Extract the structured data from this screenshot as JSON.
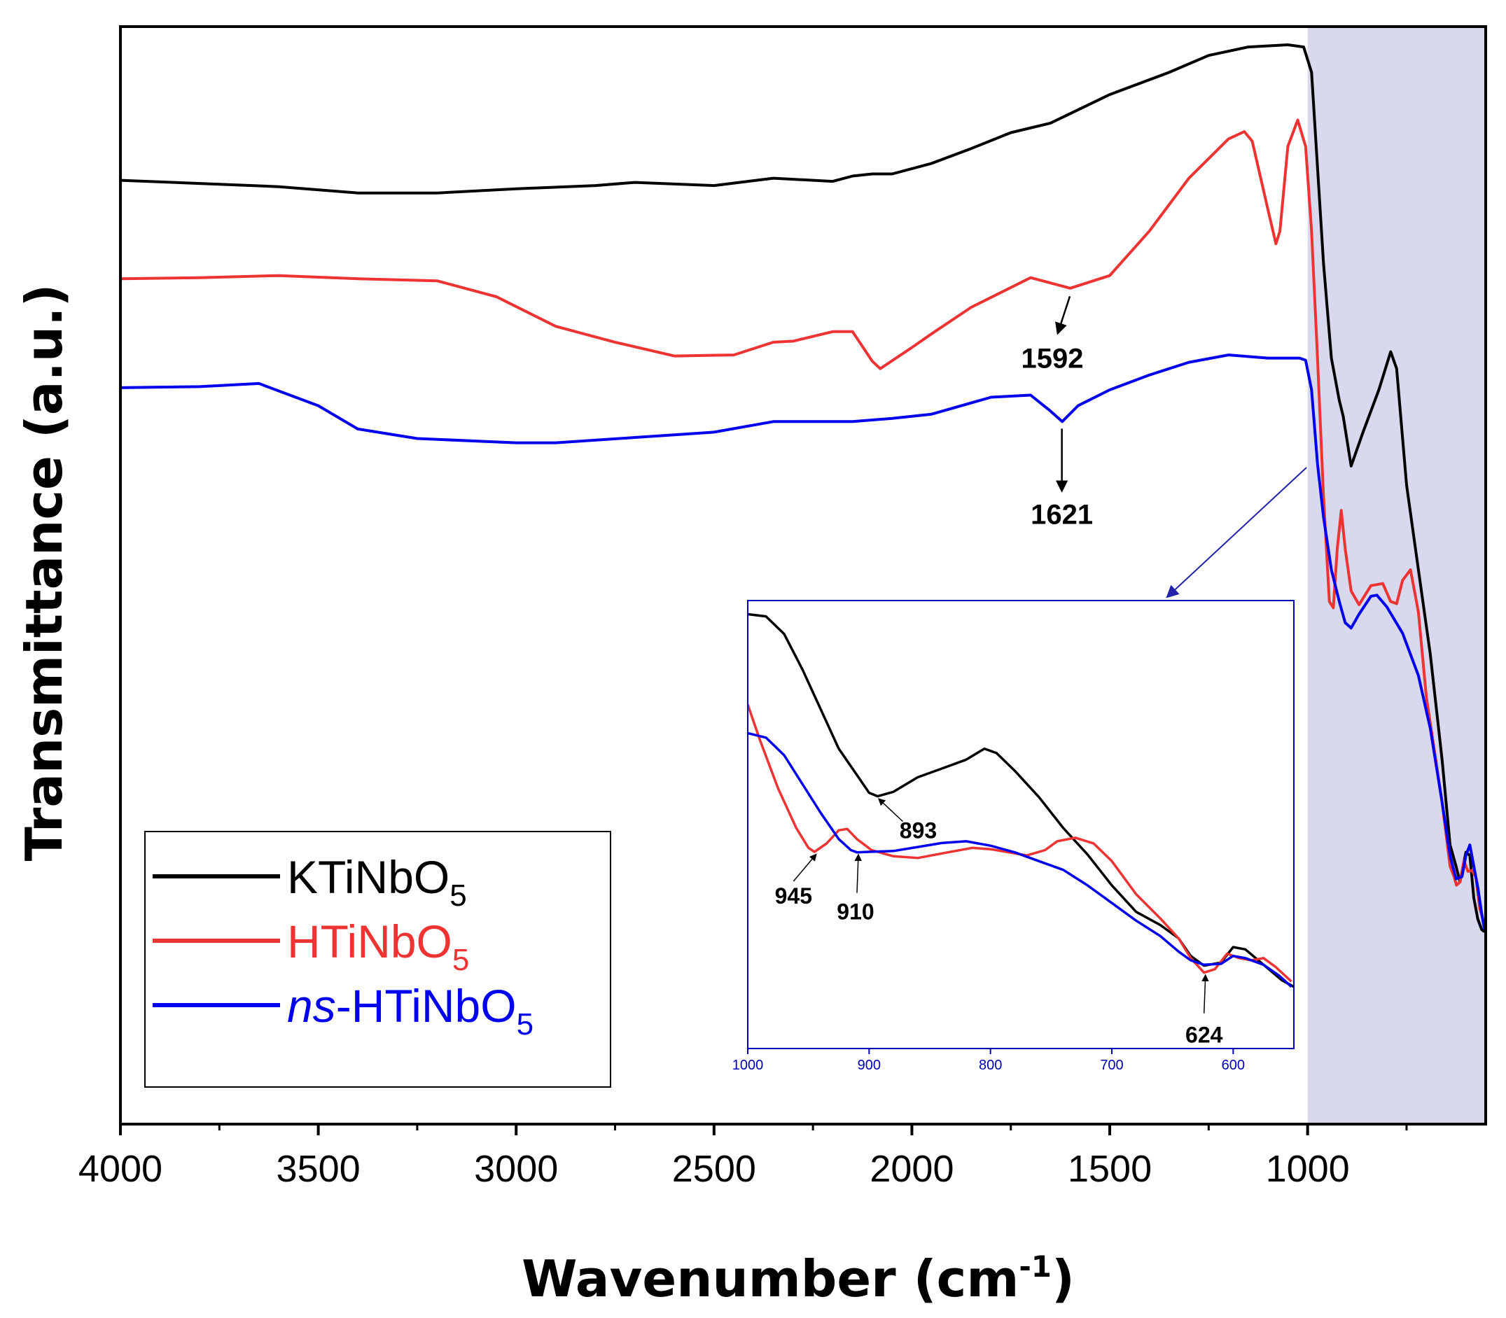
{
  "chart_data": {
    "type": "line",
    "xlabel": "Wavenumber (cm",
    "xlabel_sup": "-1",
    "xlabel_close": ")",
    "ylabel": "Transmittance (a.u.)",
    "xlim": [
      4000,
      550
    ],
    "ylim": [
      0,
      100
    ],
    "x_ticks": [
      "4000",
      "3500",
      "3000",
      "2500",
      "2000",
      "1500",
      "1000"
    ],
    "x_tick_values": [
      4000,
      3500,
      3000,
      2500,
      2000,
      1500,
      1000
    ],
    "highlight_range": [
      1000,
      550
    ],
    "highlight_color": "#d4d4ec",
    "series": [
      {
        "name": "KTiNbO",
        "sub": "5",
        "prefix": "",
        "color": "#000000",
        "points": [
          [
            4000,
            86.8
          ],
          [
            3800,
            86.5
          ],
          [
            3600,
            86.2
          ],
          [
            3400,
            85.6
          ],
          [
            3200,
            85.6
          ],
          [
            3000,
            86.0
          ],
          [
            2800,
            86.3
          ],
          [
            2700,
            86.6
          ],
          [
            2500,
            86.3
          ],
          [
            2350,
            87.0
          ],
          [
            2200,
            86.7
          ],
          [
            2150,
            87.2
          ],
          [
            2100,
            87.4
          ],
          [
            2050,
            87.4
          ],
          [
            1950,
            88.4
          ],
          [
            1850,
            89.8
          ],
          [
            1750,
            91.3
          ],
          [
            1650,
            92.2
          ],
          [
            1500,
            94.9
          ],
          [
            1350,
            97.0
          ],
          [
            1250,
            98.6
          ],
          [
            1150,
            99.4
          ],
          [
            1050,
            99.6
          ],
          [
            1010,
            99.4
          ],
          [
            990,
            97.0
          ],
          [
            975,
            88.0
          ],
          [
            960,
            79.0
          ],
          [
            940,
            70.0
          ],
          [
            920,
            66.0
          ],
          [
            910,
            64.5
          ],
          [
            890,
            59.8
          ],
          [
            860,
            63.0
          ],
          [
            820,
            67.0
          ],
          [
            790,
            70.6
          ],
          [
            775,
            69.0
          ],
          [
            750,
            58.0
          ],
          [
            720,
            50.0
          ],
          [
            690,
            42.0
          ],
          [
            660,
            32.0
          ],
          [
            640,
            24.0
          ],
          [
            625,
            22.0
          ],
          [
            615,
            20.5
          ],
          [
            600,
            23.3
          ],
          [
            590,
            23.0
          ],
          [
            580,
            19.0
          ],
          [
            570,
            17.0
          ],
          [
            560,
            16.0
          ],
          [
            553,
            15.8
          ]
        ]
      },
      {
        "name": "HTiNbO",
        "sub": "5",
        "prefix": "",
        "color": "#ee3333",
        "points": [
          [
            4000,
            77.5
          ],
          [
            3800,
            77.6
          ],
          [
            3600,
            77.8
          ],
          [
            3400,
            77.5
          ],
          [
            3200,
            77.3
          ],
          [
            3050,
            75.8
          ],
          [
            2900,
            73.0
          ],
          [
            2750,
            71.5
          ],
          [
            2600,
            70.2
          ],
          [
            2450,
            70.3
          ],
          [
            2350,
            71.5
          ],
          [
            2300,
            71.6
          ],
          [
            2200,
            72.5
          ],
          [
            2150,
            72.5
          ],
          [
            2100,
            69.7
          ],
          [
            2080,
            69.0
          ],
          [
            2000,
            71.0
          ],
          [
            1950,
            72.3
          ],
          [
            1850,
            74.8
          ],
          [
            1700,
            77.6
          ],
          [
            1600,
            76.6
          ],
          [
            1500,
            77.8
          ],
          [
            1400,
            82.0
          ],
          [
            1300,
            87.0
          ],
          [
            1200,
            90.7
          ],
          [
            1160,
            91.4
          ],
          [
            1140,
            90.5
          ],
          [
            1100,
            84.0
          ],
          [
            1080,
            80.8
          ],
          [
            1070,
            82.0
          ],
          [
            1050,
            90.0
          ],
          [
            1025,
            92.5
          ],
          [
            1005,
            90.0
          ],
          [
            990,
            82.0
          ],
          [
            975,
            70.0
          ],
          [
            960,
            57.0
          ],
          [
            945,
            47.0
          ],
          [
            935,
            46.4
          ],
          [
            925,
            52.0
          ],
          [
            915,
            55.6
          ],
          [
            905,
            52.0
          ],
          [
            890,
            48.0
          ],
          [
            870,
            46.7
          ],
          [
            840,
            48.5
          ],
          [
            810,
            48.7
          ],
          [
            790,
            47.0
          ],
          [
            775,
            46.8
          ],
          [
            760,
            49.0
          ],
          [
            740,
            50.0
          ],
          [
            720,
            46.0
          ],
          [
            700,
            38.0
          ],
          [
            680,
            33.0
          ],
          [
            660,
            28.0
          ],
          [
            640,
            22.0
          ],
          [
            630,
            21.0
          ],
          [
            624,
            20.2
          ],
          [
            615,
            20.5
          ],
          [
            605,
            22.5
          ],
          [
            595,
            21.5
          ],
          [
            585,
            21.6
          ],
          [
            575,
            21.0
          ],
          [
            565,
            18.0
          ],
          [
            553,
            16.5
          ]
        ]
      },
      {
        "name": "HTiNbO",
        "sub": "5",
        "prefix": "ns",
        "color": "#0000ee",
        "points": [
          [
            4000,
            67.2
          ],
          [
            3800,
            67.3
          ],
          [
            3650,
            67.6
          ],
          [
            3500,
            65.5
          ],
          [
            3400,
            63.3
          ],
          [
            3250,
            62.4
          ],
          [
            3000,
            62.0
          ],
          [
            2900,
            62.0
          ],
          [
            2700,
            62.5
          ],
          [
            2500,
            63.0
          ],
          [
            2350,
            64.0
          ],
          [
            2250,
            64.0
          ],
          [
            2150,
            64.0
          ],
          [
            2050,
            64.3
          ],
          [
            1950,
            64.7
          ],
          [
            1800,
            66.3
          ],
          [
            1700,
            66.5
          ],
          [
            1650,
            65.0
          ],
          [
            1620,
            64.0
          ],
          [
            1580,
            65.5
          ],
          [
            1500,
            67.0
          ],
          [
            1400,
            68.4
          ],
          [
            1300,
            69.6
          ],
          [
            1200,
            70.3
          ],
          [
            1100,
            70.0
          ],
          [
            1020,
            70.0
          ],
          [
            1005,
            69.8
          ],
          [
            990,
            67.0
          ],
          [
            975,
            60.0
          ],
          [
            960,
            55.0
          ],
          [
            940,
            50.0
          ],
          [
            920,
            47.0
          ],
          [
            905,
            45.0
          ],
          [
            890,
            44.5
          ],
          [
            870,
            45.8
          ],
          [
            840,
            47.5
          ],
          [
            825,
            47.6
          ],
          [
            800,
            46.5
          ],
          [
            760,
            44.0
          ],
          [
            720,
            40.0
          ],
          [
            690,
            35.0
          ],
          [
            660,
            28.0
          ],
          [
            640,
            23.0
          ],
          [
            625,
            20.8
          ],
          [
            610,
            21.0
          ],
          [
            600,
            23.0
          ],
          [
            590,
            24.0
          ],
          [
            580,
            22.0
          ],
          [
            570,
            20.0
          ],
          [
            560,
            17.5
          ],
          [
            553,
            16.0
          ]
        ]
      }
    ],
    "annotations": [
      {
        "label": "1592",
        "x": 1592,
        "y": 76.5
      },
      {
        "label": "1621",
        "x": 1621,
        "y": 64.0
      }
    ],
    "legend": {
      "position": "bottom-left"
    },
    "inset": {
      "xlim": [
        1000,
        550
      ],
      "x_ticks": [
        "1000",
        "900",
        "800",
        "700",
        "600"
      ],
      "x_tick_values": [
        1000,
        900,
        800,
        700,
        600
      ],
      "ylim": [
        0,
        100
      ],
      "axis_color": "#0000b4",
      "annotations": [
        {
          "label": "893",
          "x": 893
        },
        {
          "label": "945",
          "x": 945
        },
        {
          "label": "910",
          "x": 910
        },
        {
          "label": "624",
          "x": 624
        }
      ],
      "series": [
        {
          "name": "KTiNbO",
          "color": "#000000",
          "points": [
            [
              1000,
              98.5
            ],
            [
              985,
              98.0
            ],
            [
              970,
              94.0
            ],
            [
              955,
              86.0
            ],
            [
              940,
              77.0
            ],
            [
              925,
              68.0
            ],
            [
              910,
              62.0
            ],
            [
              900,
              58.0
            ],
            [
              893,
              57.2
            ],
            [
              880,
              58.2
            ],
            [
              860,
              61.5
            ],
            [
              840,
              63.5
            ],
            [
              820,
              65.5
            ],
            [
              805,
              68.0
            ],
            [
              795,
              67.0
            ],
            [
              780,
              63.0
            ],
            [
              760,
              57.0
            ],
            [
              740,
              50.0
            ],
            [
              720,
              44.0
            ],
            [
              700,
              37.0
            ],
            [
              680,
              31.0
            ],
            [
              660,
              28.0
            ],
            [
              645,
              25.0
            ],
            [
              635,
              21.0
            ],
            [
              624,
              18.8
            ],
            [
              610,
              19.5
            ],
            [
              600,
              23.0
            ],
            [
              590,
              22.5
            ],
            [
              575,
              19.0
            ],
            [
              560,
              15.5
            ],
            [
              550,
              14.0
            ]
          ]
        },
        {
          "name": "HTiNbO",
          "color": "#ee3333",
          "points": [
            [
              1000,
              78.0
            ],
            [
              990,
              70.0
            ],
            [
              975,
              59.0
            ],
            [
              960,
              50.0
            ],
            [
              950,
              45.5
            ],
            [
              945,
              44.6
            ],
            [
              935,
              46.5
            ],
            [
              925,
              49.5
            ],
            [
              918,
              49.8
            ],
            [
              910,
              47.5
            ],
            [
              898,
              45.0
            ],
            [
              880,
              43.6
            ],
            [
              860,
              43.2
            ],
            [
              835,
              44.5
            ],
            [
              815,
              45.5
            ],
            [
              800,
              45.2
            ],
            [
              785,
              44.5
            ],
            [
              770,
              43.8
            ],
            [
              755,
              45.0
            ],
            [
              745,
              47.0
            ],
            [
              730,
              47.8
            ],
            [
              715,
              46.5
            ],
            [
              700,
              42.5
            ],
            [
              680,
              35.0
            ],
            [
              660,
              29.5
            ],
            [
              645,
              25.0
            ],
            [
              635,
              20.5
            ],
            [
              624,
              17.2
            ],
            [
              615,
              18.0
            ],
            [
              605,
              21.5
            ],
            [
              595,
              20.5
            ],
            [
              585,
              20.0
            ],
            [
              575,
              20.5
            ],
            [
              565,
              18.5
            ],
            [
              552,
              15.2
            ]
          ]
        },
        {
          "name": "ns-HTiNbO",
          "color": "#0000ee",
          "points": [
            [
              1000,
              71.5
            ],
            [
              985,
              70.5
            ],
            [
              970,
              66.5
            ],
            [
              955,
              60.0
            ],
            [
              940,
              53.5
            ],
            [
              925,
              47.5
            ],
            [
              915,
              45.0
            ],
            [
              910,
              44.5
            ],
            [
              900,
              44.6
            ],
            [
              880,
              44.8
            ],
            [
              860,
              45.7
            ],
            [
              840,
              46.6
            ],
            [
              820,
              47.0
            ],
            [
              800,
              46.0
            ],
            [
              780,
              44.5
            ],
            [
              760,
              42.5
            ],
            [
              740,
              40.5
            ],
            [
              720,
              37.0
            ],
            [
              700,
              33.0
            ],
            [
              680,
              29.0
            ],
            [
              660,
              25.5
            ],
            [
              645,
              22.0
            ],
            [
              635,
              20.0
            ],
            [
              624,
              19.0
            ],
            [
              610,
              19.2
            ],
            [
              600,
              21.0
            ],
            [
              590,
              20.5
            ],
            [
              575,
              19.0
            ],
            [
              562,
              16.5
            ],
            [
              552,
              14.0
            ]
          ]
        }
      ]
    }
  }
}
